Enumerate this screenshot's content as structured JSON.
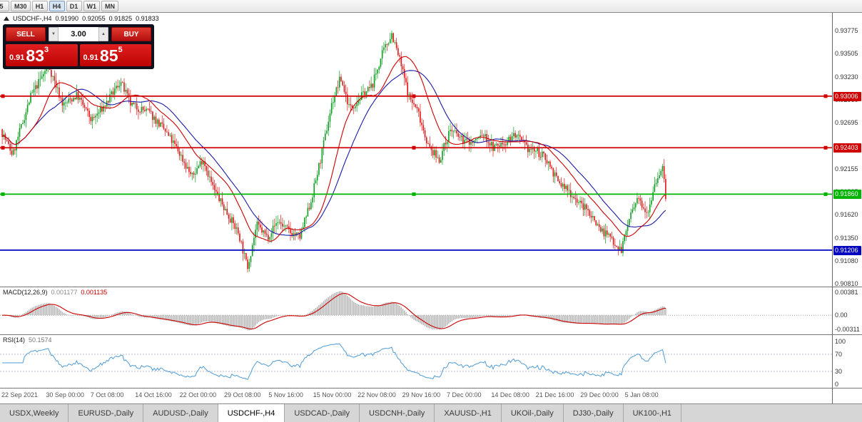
{
  "toolbar": {
    "timeframes": [
      {
        "label": "5",
        "active": false
      },
      {
        "label": "M30",
        "active": false
      },
      {
        "label": "H1",
        "active": false
      },
      {
        "label": "H4",
        "active": true
      },
      {
        "label": "D1",
        "active": false
      },
      {
        "label": "W1",
        "active": false
      },
      {
        "label": "MN",
        "active": false
      }
    ]
  },
  "chart": {
    "symbol_tf": "USDCHF-,H4",
    "ohlc": {
      "open": "0.91990",
      "high": "0.92055",
      "low": "0.91825",
      "close": "0.91833"
    }
  },
  "trade_panel": {
    "sell_label": "SELL",
    "buy_label": "BUY",
    "volume": "3.00",
    "sell_price": {
      "prefix": "0.91",
      "big": "83",
      "sup": "3"
    },
    "buy_price": {
      "prefix": "0.91",
      "big": "85",
      "sup": "5"
    }
  },
  "price_axis": {
    "ticks": [
      "0.93775",
      "0.93505",
      "0.93230",
      "0.92960",
      "0.92695",
      "0.92425",
      "0.92155",
      "0.91885",
      "0.91620",
      "0.91350",
      "0.91080",
      "0.90810"
    ]
  },
  "hlines": [
    {
      "price": 0.93006,
      "label": "0.93006",
      "color": "#d00000",
      "handles": true
    },
    {
      "price": 0.92403,
      "label": "0.92403",
      "color": "#d00000",
      "handles": true
    },
    {
      "price": 0.9186,
      "label": "0.91860",
      "color": "#00b400",
      "handles": true
    },
    {
      "price": 0.91206,
      "label": "0.91206",
      "color": "#0000c0",
      "handles": false
    }
  ],
  "macd": {
    "label": "MACD(12,26,9)",
    "value": "0.001177",
    "signal_value": "0.001135",
    "axis": [
      "0.00381",
      "0.00",
      "-0.00311"
    ]
  },
  "rsi": {
    "label": "RSI(14)",
    "value": "50.1574",
    "axis": [
      "100",
      "70",
      "30",
      "0"
    ],
    "levels": [
      70,
      30
    ]
  },
  "time_axis": [
    "22 Sep 2021",
    "30 Sep 00:00",
    "7 Oct 08:00",
    "14 Oct 16:00",
    "22 Oct 00:00",
    "29 Oct 08:00",
    "5 Nov 16:00",
    "15 Nov 00:00",
    "22 Nov 08:00",
    "29 Nov 16:00",
    "7 Dec 00:00",
    "14 Dec 08:00",
    "21 Dec 16:00",
    "29 Dec 00:00",
    "5 Jan 08:00"
  ],
  "tabs": [
    {
      "label": "USDX,Weekly",
      "active": false
    },
    {
      "label": "EURUSD-,Daily",
      "active": false
    },
    {
      "label": "AUDUSD-,Daily",
      "active": false
    },
    {
      "label": "USDCHF-,H4",
      "active": true
    },
    {
      "label": "USDCAD-,Daily",
      "active": false
    },
    {
      "label": "USDCNH-,Daily",
      "active": false
    },
    {
      "label": "XAUUSD-,H1",
      "active": false
    },
    {
      "label": "UKOil-,Daily",
      "active": false
    },
    {
      "label": "DJ30-,Daily",
      "active": false
    },
    {
      "label": "UK100-,H1",
      "active": false
    }
  ],
  "chart_data": {
    "type": "candlestick",
    "symbol": "USDCHF-",
    "timeframe": "H4",
    "last_bar_ohlc": {
      "open": 0.9199,
      "high": 0.92055,
      "low": 0.91825,
      "close": 0.91833
    },
    "price_range": {
      "top": 0.9398,
      "bottom": 0.9078
    },
    "axis_ticks": [
      0.93775,
      0.93505,
      0.9323,
      0.9296,
      0.92695,
      0.92425,
      0.92155,
      0.91885,
      0.9162,
      0.9135,
      0.9108,
      0.9081
    ],
    "horizontal_levels": [
      0.93006,
      0.92403,
      0.9186,
      0.91206
    ],
    "candle_count": 420,
    "up_color": "#0a9d1e",
    "down_color": "#e21414",
    "ma_fast": {
      "period": 21,
      "color": "#cc0000"
    },
    "ma_slow": {
      "period": 34,
      "color": "#1a1aa6"
    },
    "macd_colors": {
      "histogram": "#b0b0b0",
      "signal": "#cc0000"
    },
    "rsi_color": "#4f9bd5",
    "price_path": [
      [
        0,
        0.9262
      ],
      [
        0.018,
        0.9232
      ],
      [
        0.045,
        0.93
      ],
      [
        0.072,
        0.9337
      ],
      [
        0.094,
        0.929
      ],
      [
        0.115,
        0.9302
      ],
      [
        0.137,
        0.9272
      ],
      [
        0.159,
        0.9292
      ],
      [
        0.18,
        0.9318
      ],
      [
        0.196,
        0.929
      ],
      [
        0.223,
        0.9282
      ],
      [
        0.245,
        0.9262
      ],
      [
        0.266,
        0.9238
      ],
      [
        0.288,
        0.9206
      ],
      [
        0.304,
        0.9228
      ],
      [
        0.32,
        0.9192
      ],
      [
        0.342,
        0.9162
      ],
      [
        0.358,
        0.914
      ],
      [
        0.371,
        0.91
      ],
      [
        0.385,
        0.915
      ],
      [
        0.401,
        0.9136
      ],
      [
        0.417,
        0.9155
      ],
      [
        0.434,
        0.9142
      ],
      [
        0.45,
        0.9136
      ],
      [
        0.466,
        0.9176
      ],
      [
        0.482,
        0.923
      ],
      [
        0.498,
        0.9292
      ],
      [
        0.511,
        0.9322
      ],
      [
        0.525,
        0.9286
      ],
      [
        0.542,
        0.93
      ],
      [
        0.558,
        0.9312
      ],
      [
        0.574,
        0.935
      ],
      [
        0.588,
        0.9374
      ],
      [
        0.601,
        0.934
      ],
      [
        0.614,
        0.93
      ],
      [
        0.628,
        0.9282
      ],
      [
        0.644,
        0.924
      ],
      [
        0.66,
        0.9226
      ],
      [
        0.676,
        0.9262
      ],
      [
        0.693,
        0.925
      ],
      [
        0.709,
        0.9246
      ],
      [
        0.725,
        0.9256
      ],
      [
        0.741,
        0.924
      ],
      [
        0.757,
        0.9246
      ],
      [
        0.773,
        0.9256
      ],
      [
        0.79,
        0.924
      ],
      [
        0.806,
        0.9236
      ],
      [
        0.822,
        0.9226
      ],
      [
        0.838,
        0.92
      ],
      [
        0.854,
        0.919
      ],
      [
        0.87,
        0.9176
      ],
      [
        0.886,
        0.9164
      ],
      [
        0.903,
        0.9144
      ],
      [
        0.919,
        0.9134
      ],
      [
        0.933,
        0.912
      ],
      [
        0.946,
        0.916
      ],
      [
        0.959,
        0.918
      ],
      [
        0.973,
        0.9166
      ],
      [
        0.984,
        0.92
      ],
      [
        0.995,
        0.9218
      ],
      [
        1,
        0.9183
      ]
    ]
  }
}
